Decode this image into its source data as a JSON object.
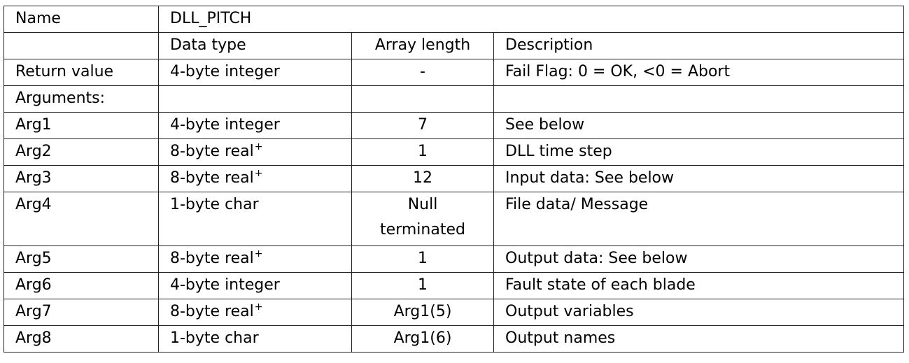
{
  "name_label": "Name",
  "name_value": "DLL_PITCH",
  "headers": [
    "",
    "Data type",
    "Array length",
    "Description"
  ],
  "return_row": {
    "label": "Return value",
    "type": "4-byte integer",
    "length": "-",
    "description": "Fail Flag: 0 = OK, <0 = Abort"
  },
  "arguments_label": "Arguments:",
  "args": [
    {
      "label": "Arg1",
      "type": "4-byte integer",
      "sup": "",
      "length": "7",
      "description": "See below"
    },
    {
      "label": "Arg2",
      "type": "8-byte real",
      "sup": "+",
      "length": "1",
      "description": "DLL time step"
    },
    {
      "label": "Arg3",
      "type": "8-byte real",
      "sup": "+",
      "length": "12",
      "description": "Input data: See below"
    },
    {
      "label": "Arg4",
      "type": "1-byte char",
      "sup": "",
      "length": "Null terminated",
      "description": "File data/ Message"
    },
    {
      "label": "Arg5",
      "type": "8-byte real",
      "sup": "+",
      "length": "1",
      "description": "Output data: See below"
    },
    {
      "label": "Arg6",
      "type": "4-byte integer",
      "sup": "",
      "length": "1",
      "description": "Fault state of each blade"
    },
    {
      "label": "Arg7",
      "type": "8-byte real",
      "sup": "+",
      "length": "Arg1(5)",
      "description": "Output variables"
    },
    {
      "label": "Arg8",
      "type": "1-byte char",
      "sup": "",
      "length": "Arg1(6)",
      "description": "Output names"
    }
  ]
}
